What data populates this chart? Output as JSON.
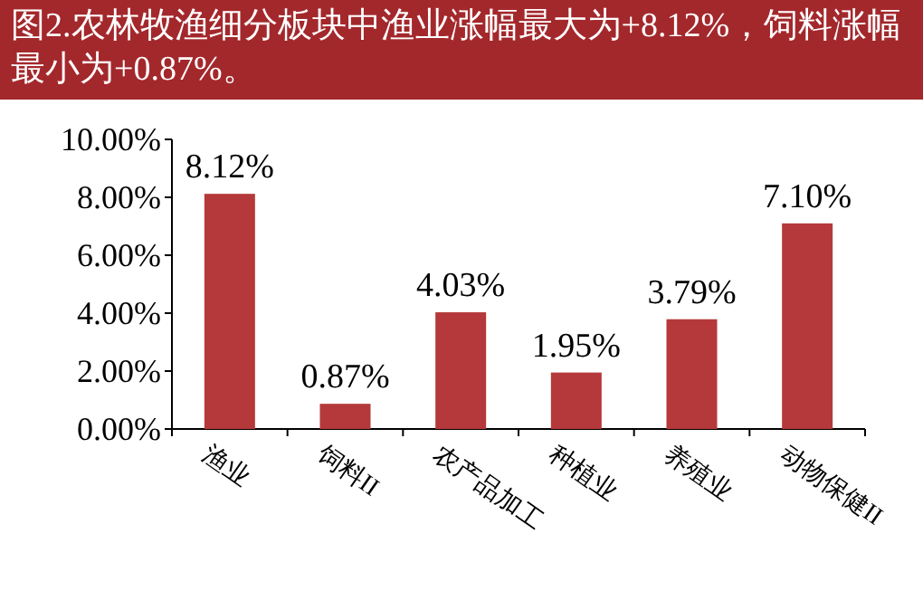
{
  "chart_data": {
    "type": "bar",
    "title": "图2.农林牧渔细分板块中渔业涨幅最大为+8.12%，饲料涨幅最小为+0.87%。",
    "categories": [
      "渔业",
      "饲料II",
      "农产品加工",
      "种植业",
      "养殖业",
      "动物保健II"
    ],
    "values": [
      8.12,
      0.87,
      4.03,
      1.95,
      3.79,
      7.1
    ],
    "value_labels": [
      "8.12%",
      "0.87%",
      "4.03%",
      "1.95%",
      "3.79%",
      "7.10%"
    ],
    "color": "#b5393a",
    "ylim": [
      0,
      10
    ],
    "yticks": [
      {
        "value": 0,
        "label": "0.00%"
      },
      {
        "value": 2,
        "label": "2.00%"
      },
      {
        "value": 4,
        "label": "4.00%"
      },
      {
        "value": 6,
        "label": "6.00%"
      },
      {
        "value": 8,
        "label": "8.00%"
      },
      {
        "value": 10,
        "label": "10.00%"
      }
    ],
    "grid": false
  }
}
